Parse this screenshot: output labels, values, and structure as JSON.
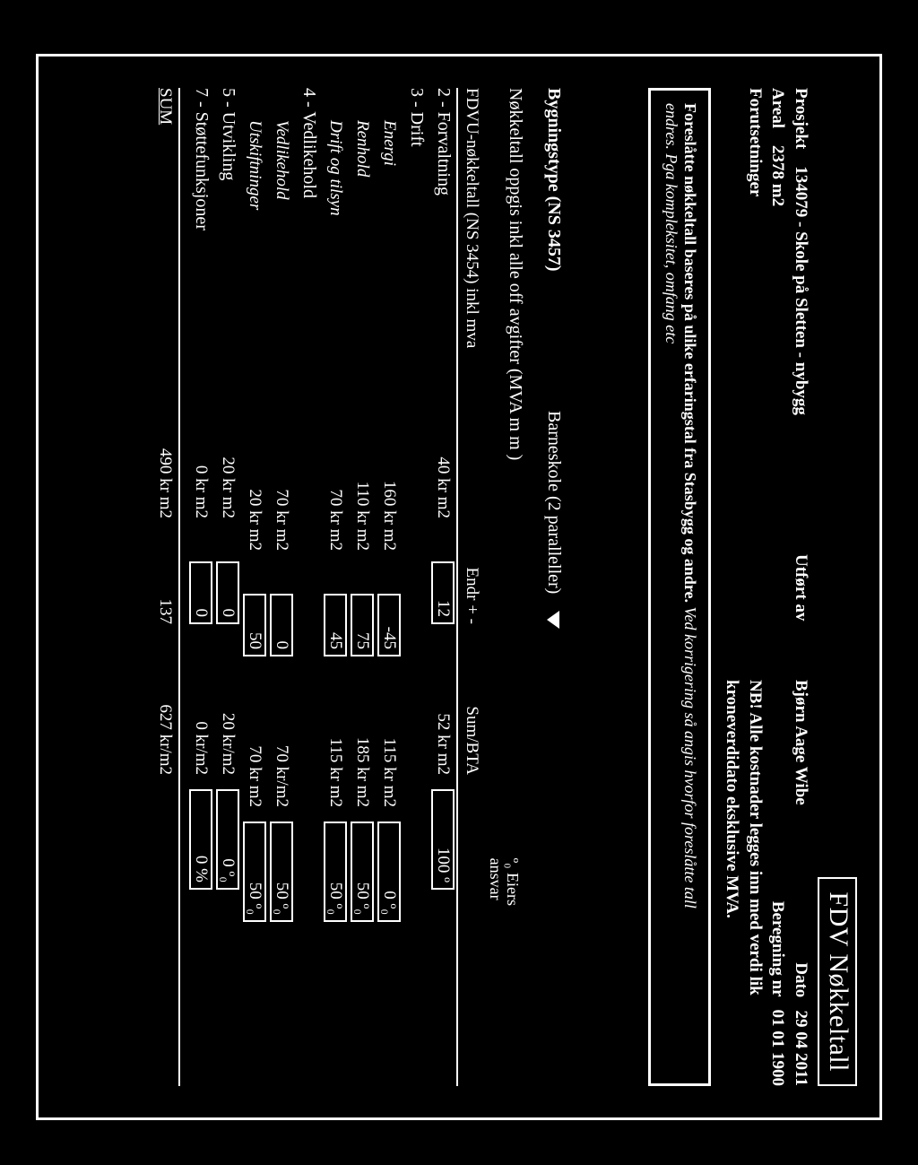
{
  "title": "FDV Nøkkeltall",
  "meta": {
    "project_label": "Prosjekt",
    "project": "134079 - Skole på Sletten - nybygg",
    "performed_by_label": "Utført av",
    "performed_by": "Bjørn Aage Wibe",
    "date_label": "Dato",
    "date": "29 04 2011",
    "area_label": "Areal",
    "area": "2378 m2",
    "calc_label": "Beregning nr",
    "calc": "01 01 1900",
    "assumptions_label": "Forutsetninger",
    "nb_line": "NB! Alle kostnader legges inn med verdi lik kroneverdidato eksklusive MVA.",
    "note_bold": "Foreslåtte nøkkeltall baseres på ulike erfaringstal fra Stasbygg og andre.",
    "note_italic1": "Ved korrigering så angis hvorfor foreslåtte tall",
    "note_italic2": "endres. Pga kompleksitet, omfang etc"
  },
  "body": {
    "bygningstype_label": "Bygningstype (NS 3457)",
    "bygningstype_value": "Barneskole (2 paralleller)",
    "nokkeltall_line": "Nøkkeltall oppgis inkl  alle off  avgifter (MVA m m )"
  },
  "table": {
    "header": {
      "c1": "FDVU-nøkkeltall (NS 3454)  inkl mva",
      "c3": "Endr + -",
      "c4": "Sum/BTA",
      "owner1": "º₀  Eiers",
      "owner2": "ansvar"
    },
    "rows": [
      {
        "type": "main",
        "c1": "2 - Forvaltning",
        "c2": "40 kr m2",
        "c3": "12",
        "c4": "52 kr m2",
        "c5": "100 º",
        "box3": true,
        "box5": true
      },
      {
        "type": "main",
        "c1": "3 - Drift"
      },
      {
        "type": "sub",
        "c1": "Energi",
        "c2": "160 kr m2",
        "c3": "-45",
        "c4": "115 kr m2",
        "c5": "0 º₀",
        "box3": true,
        "box5": true
      },
      {
        "type": "sub",
        "c1": "Renhold",
        "c2": "110 kr m2",
        "c3": "75",
        "c4": "185 kr m2",
        "c5": "50 º₀",
        "box3": true,
        "box5": true
      },
      {
        "type": "sub",
        "c1": "Drift og tilsyn",
        "c2": "70 kr m2",
        "c3": "45",
        "c4": "115 kr m2",
        "c5": "50 º₀",
        "box3": true,
        "box5": true
      },
      {
        "type": "main",
        "c1": "4 - Vedlikehold"
      },
      {
        "type": "sub",
        "c1": "Vedlikehold",
        "c2": "70 kr m2",
        "c3": "0",
        "c4": "70 kr/m2",
        "c5": "50 º₀",
        "box3": true,
        "box5": true
      },
      {
        "type": "sub",
        "c1": "Utskiftninger",
        "c2": "20 kr m2",
        "c3": "50",
        "c4": "70 kr m2",
        "c5": "50 º₀",
        "box3": true,
        "box5": true
      },
      {
        "type": "main",
        "c1": "5 - Utvikling",
        "c2": "20 kr m2",
        "c3": "0",
        "c4": "20 kr/m2",
        "c5": "0 º₀",
        "box3": true,
        "box5": true
      },
      {
        "type": "main",
        "c1": "7 - Støttefunksjoner",
        "c2": "0 kr m2",
        "c3": "0",
        "c4": "0 kr/m2",
        "c5": "0 %",
        "box3": true,
        "box5": true
      }
    ],
    "sum": {
      "c1": "SUM",
      "c2": "490 kr m2",
      "c3": "137",
      "c4": "627 kr/m2"
    }
  }
}
